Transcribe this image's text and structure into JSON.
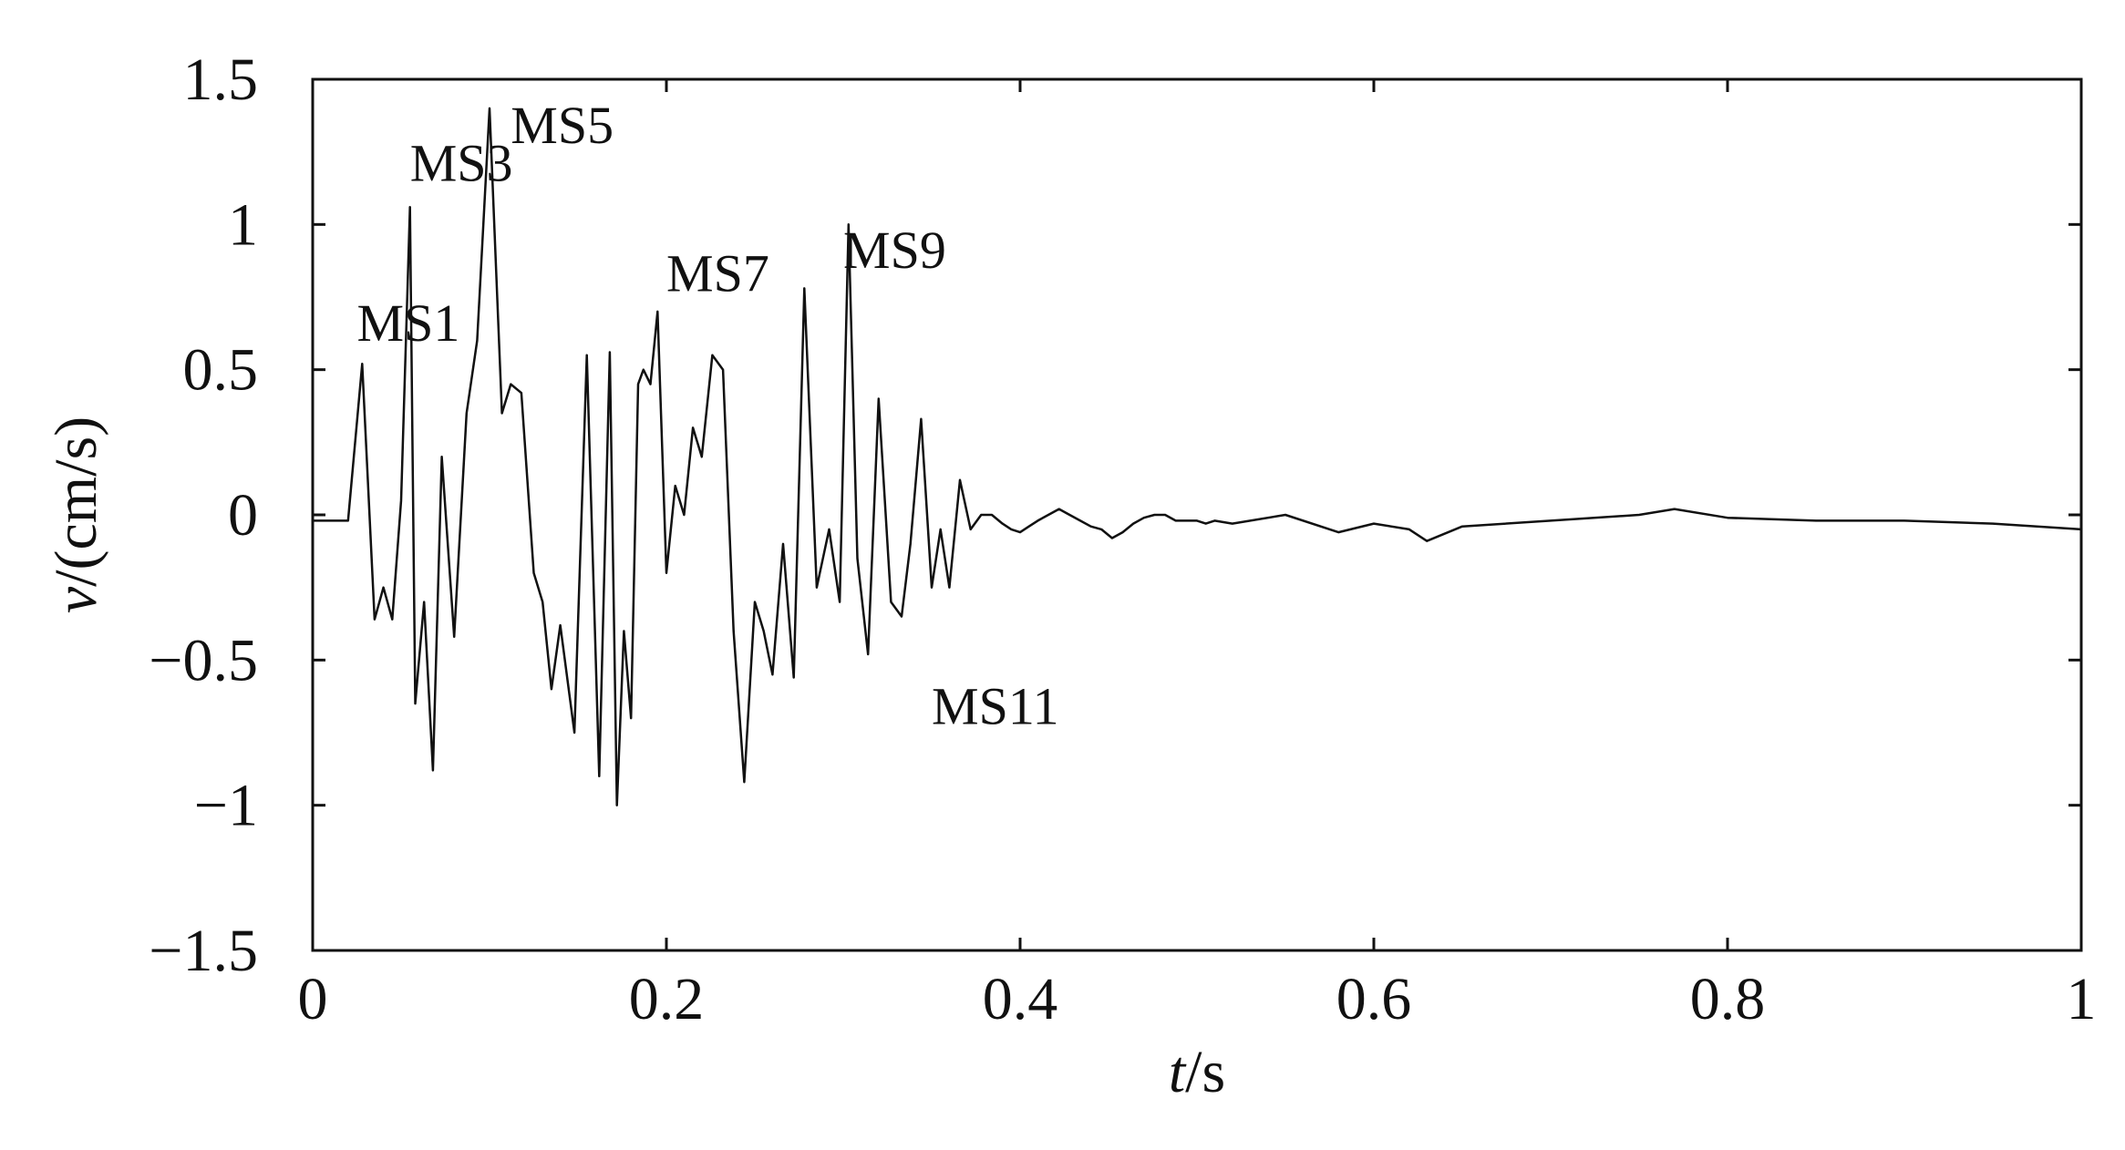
{
  "chart_data": {
    "type": "line",
    "title": "",
    "xlabel": {
      "var": "t",
      "unit": "/s"
    },
    "ylabel": {
      "var": "v",
      "unit": "/(cm/s)"
    },
    "xlim": [
      0,
      1
    ],
    "ylim": [
      -1.5,
      1.5
    ],
    "grid": false,
    "x_ticks": [
      0,
      0.2,
      0.4,
      0.6,
      0.8,
      1
    ],
    "x_tick_labels": [
      "0",
      "0.2",
      "0.4",
      "0.6",
      "0.8",
      "1"
    ],
    "y_ticks": [
      1.5,
      1,
      0.5,
      0,
      -0.5,
      -1,
      -1.5
    ],
    "y_tick_labels": [
      "1.5",
      "1",
      "0.5",
      "0",
      "−0.5",
      "−1",
      "−1.5"
    ],
    "line_color": "#111111",
    "series": [
      {
        "x": [
          0,
          0.02,
          0.028,
          0.035,
          0.04,
          0.045,
          0.05,
          0.055,
          0.058,
          0.063,
          0.068,
          0.073,
          0.08,
          0.087,
          0.093,
          0.1,
          0.107,
          0.112,
          0.118,
          0.125,
          0.13,
          0.135,
          0.14,
          0.148,
          0.155,
          0.162,
          0.168,
          0.172,
          0.176,
          0.18,
          0.184,
          0.187,
          0.191,
          0.195,
          0.2,
          0.205,
          0.21,
          0.215,
          0.22,
          0.226,
          0.232,
          0.238,
          0.244,
          0.25,
          0.255,
          0.26,
          0.266,
          0.272,
          0.278,
          0.285,
          0.292,
          0.298,
          0.303,
          0.308,
          0.314,
          0.32,
          0.327,
          0.333,
          0.338,
          0.344,
          0.35,
          0.355,
          0.36,
          0.366,
          0.372,
          0.378,
          0.384,
          0.39,
          0.395,
          0.4,
          0.405,
          0.41,
          0.416,
          0.422,
          0.428,
          0.434,
          0.44,
          0.446,
          0.452,
          0.458,
          0.464,
          0.47,
          0.476,
          0.482,
          0.488,
          0.494,
          0.5,
          0.505,
          0.51,
          0.52,
          0.55,
          0.58,
          0.6,
          0.62,
          0.63,
          0.65,
          0.7,
          0.75,
          0.77,
          0.8,
          0.85,
          0.9,
          0.95,
          1
        ],
        "y": [
          -0.02,
          -0.02,
          0.52,
          -0.36,
          -0.25,
          -0.36,
          0.05,
          1.06,
          -0.65,
          -0.3,
          -0.88,
          0.2,
          -0.42,
          0.35,
          0.6,
          1.4,
          0.35,
          0.45,
          0.42,
          -0.2,
          -0.3,
          -0.6,
          -0.38,
          -0.75,
          0.55,
          -0.9,
          0.56,
          -1.0,
          -0.4,
          -0.7,
          0.45,
          0.5,
          0.45,
          0.7,
          -0.2,
          0.1,
          0.0,
          0.3,
          0.2,
          0.55,
          0.5,
          -0.4,
          -0.92,
          -0.3,
          -0.4,
          -0.55,
          -0.1,
          -0.56,
          0.78,
          -0.25,
          -0.05,
          -0.3,
          1.0,
          -0.15,
          -0.48,
          0.4,
          -0.3,
          -0.35,
          -0.1,
          0.33,
          -0.25,
          -0.05,
          -0.25,
          0.12,
          -0.05,
          0.0,
          0.0,
          -0.03,
          -0.05,
          -0.06,
          -0.04,
          -0.02,
          0.0,
          0.02,
          0.0,
          -0.02,
          -0.04,
          -0.05,
          -0.08,
          -0.06,
          -0.03,
          -0.01,
          0.0,
          0.0,
          -0.02,
          -0.02,
          -0.02,
          -0.03,
          -0.02,
          -0.03,
          0.0,
          -0.06,
          -0.03,
          -0.05,
          -0.09,
          -0.04,
          -0.02,
          0.0,
          0.02,
          -0.01,
          -0.02,
          -0.02,
          -0.03,
          -0.05
        ]
      }
    ],
    "annotations": [
      {
        "text": "MS1",
        "x": 0.025,
        "y": 0.6
      },
      {
        "text": "MS3",
        "x": 0.055,
        "y": 1.15
      },
      {
        "text": "MS5",
        "x": 0.112,
        "y": 1.28
      },
      {
        "text": "MS7",
        "x": 0.2,
        "y": 0.77
      },
      {
        "text": "MS9",
        "x": 0.3,
        "y": 0.85
      },
      {
        "text": "MS11",
        "x": 0.35,
        "y": -0.72
      }
    ]
  }
}
